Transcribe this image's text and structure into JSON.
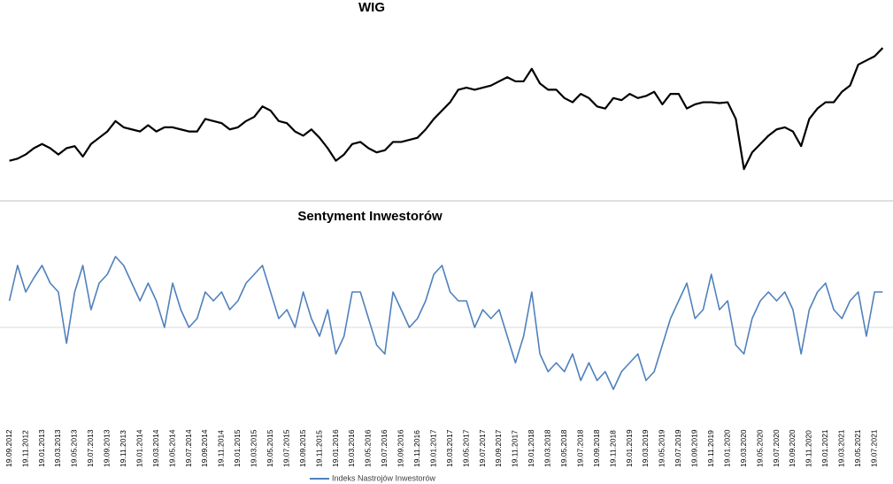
{
  "chart_data": [
    {
      "type": "line",
      "title": "WIG",
      "color": "#000000",
      "ylim": [
        38000,
        74000
      ],
      "values": [
        44000,
        44500,
        45500,
        47000,
        48000,
        47000,
        45500,
        47000,
        47500,
        45000,
        48000,
        49500,
        51000,
        53500,
        52000,
        51500,
        51000,
        52500,
        51000,
        52000,
        52000,
        51500,
        51000,
        51000,
        54000,
        53500,
        53000,
        51500,
        52000,
        53500,
        54500,
        57000,
        56000,
        53500,
        53000,
        51000,
        50000,
        51500,
        49500,
        47000,
        44000,
        45500,
        48000,
        48500,
        47000,
        46000,
        46500,
        48500,
        48500,
        49000,
        49500,
        51500,
        54000,
        56000,
        58000,
        61000,
        61500,
        61000,
        61500,
        62000,
        63000,
        64000,
        63000,
        63000,
        66000,
        62500,
        61000,
        61000,
        59000,
        58000,
        60000,
        59000,
        57000,
        56500,
        59000,
        58500,
        60000,
        59000,
        59500,
        60500,
        57500,
        60000,
        60000,
        56500,
        57500,
        58000,
        58000,
        57800,
        58000,
        54000,
        42000,
        46000,
        48000,
        50000,
        51500,
        52000,
        51000,
        47500,
        54000,
        56500,
        58000,
        58000,
        60500,
        62000,
        67000,
        68000,
        69000,
        71000
      ]
    },
    {
      "type": "line",
      "title": "Sentyment Inwestorów",
      "ylim": [
        -50,
        50
      ],
      "zero_line": 0,
      "categories": [
        "19.09.2012",
        null,
        "19.11.2012",
        null,
        "19.01.2013",
        null,
        "19.03.2013",
        null,
        "19.05.2013",
        null,
        "19.07.2013",
        null,
        "19.09.2013",
        null,
        "19.11.2013",
        null,
        "19.01.2014",
        null,
        "19.03.2014",
        null,
        "19.05.2014",
        null,
        "19.07.2014",
        null,
        "19.09.2014",
        null,
        "19.11.2014",
        null,
        "19.01.2015",
        null,
        "19.03.2015",
        null,
        "19.05.2015",
        null,
        "19.07.2015",
        null,
        "19.09.2015",
        null,
        "19.11.2015",
        null,
        "19.01.2016",
        null,
        "19.03.2016",
        null,
        "19.05.2016",
        null,
        "19.07.2016",
        null,
        "19.09.2016",
        null,
        "19.11.2016",
        null,
        "19.01.2017",
        null,
        "19.03.2017",
        null,
        "19.05.2017",
        null,
        "19.07.2017",
        null,
        "19.09.2017",
        null,
        "19.11.2017",
        null,
        "19.01.2018",
        null,
        "19.03.2018",
        null,
        "19.05.2018",
        null,
        "19.07.2018",
        null,
        "19.09.2018",
        null,
        "19.11.2018",
        null,
        "19.01.2019",
        null,
        "19.03.2019",
        null,
        "19.05.2019",
        null,
        "19.07.2019",
        null,
        "19.09.2019",
        null,
        "19.11.2019",
        null,
        "19.01.2020",
        null,
        "19.03.2020",
        null,
        "19.05.2020",
        null,
        "19.07.2020",
        null,
        "19.09.2020",
        null,
        "19.11.2020",
        null,
        "19.01.2021",
        null,
        "19.03.2021",
        null,
        "19.05.2021",
        null,
        "19.07.2021",
        null
      ],
      "series": [
        {
          "name": "Indeks Nastrojów Inwestorów",
          "color": "#4f81bd",
          "values": [
            15,
            35,
            20,
            28,
            35,
            25,
            20,
            -9,
            20,
            35,
            10,
            25,
            30,
            40,
            35,
            25,
            15,
            25,
            15,
            0,
            25,
            10,
            0,
            5,
            20,
            15,
            20,
            10,
            15,
            25,
            30,
            35,
            20,
            5,
            10,
            0,
            20,
            5,
            -5,
            10,
            -15,
            -5,
            20,
            20,
            5,
            -10,
            -15,
            20,
            10,
            0,
            5,
            15,
            30,
            35,
            20,
            15,
            15,
            0,
            10,
            5,
            10,
            -5,
            -20,
            -5,
            20,
            -15,
            -25,
            -20,
            -25,
            -15,
            -30,
            -20,
            -30,
            -25,
            -35,
            -25,
            -20,
            -15,
            -30,
            -25,
            -10,
            5,
            15,
            25,
            5,
            10,
            30,
            10,
            15,
            -10,
            -15,
            5,
            15,
            20,
            15,
            20,
            10,
            -15,
            10,
            20,
            25,
            10,
            5,
            15,
            20,
            -5,
            20,
            20
          ]
        }
      ]
    }
  ]
}
